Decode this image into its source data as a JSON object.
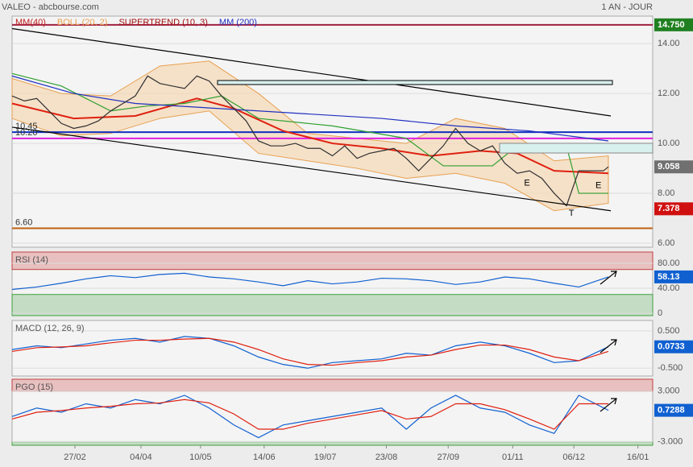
{
  "header": {
    "title": "VALEO - abcbourse.com",
    "period": "1 AN - JOUR"
  },
  "chart_data": [
    {
      "type": "line",
      "xlim": [
        0,
        260
      ],
      "xticks": [
        {
          "value": 25.5,
          "label": "27/02"
        },
        {
          "value": 52.3,
          "label": "04/04"
        },
        {
          "value": 76.5,
          "label": "10/05"
        },
        {
          "value": 102.3,
          "label": "14/06"
        },
        {
          "value": 127.1,
          "label": "19/07"
        },
        {
          "value": 151.9,
          "label": "23/08"
        },
        {
          "value": 177,
          "label": "27/09"
        },
        {
          "value": 203.2,
          "label": "01/11"
        },
        {
          "value": 228,
          "label": "06/12"
        },
        {
          "value": 254,
          "label": "16/01"
        }
      ],
      "ylim": [
        5.84,
        15.1
      ],
      "yticks": [
        {
          "value": 14,
          "label": "14.00"
        },
        {
          "value": 12,
          "label": "12.00"
        },
        {
          "value": 10,
          "label": "10.00"
        },
        {
          "value": 8,
          "label": "8.00"
        },
        {
          "value": 6,
          "label": "6.00"
        }
      ],
      "band": {
        "name": "BOLL (20, 2)",
        "color": "#e8a050",
        "x": [
          0,
          20,
          40,
          60,
          80,
          100,
          120,
          140,
          160,
          180,
          200,
          220,
          242
        ],
        "upper": [
          12.6,
          12.0,
          11.9,
          13.1,
          13.3,
          12.0,
          10.4,
          10.2,
          10.0,
          11.0,
          10.6,
          9.3,
          9.5
        ],
        "lower": [
          11.0,
          10.3,
          10.4,
          11.0,
          11.3,
          9.6,
          9.3,
          9.0,
          8.6,
          8.8,
          8.4,
          7.3,
          7.6
        ]
      },
      "series": [
        {
          "name": "MM(40)",
          "color": "#e02010",
          "x": [
            0,
            25,
            50,
            75,
            90,
            110,
            130,
            150,
            170,
            190,
            205,
            220,
            242
          ],
          "values": [
            11.6,
            11.0,
            11.1,
            11.8,
            11.4,
            10.5,
            10.0,
            9.8,
            9.5,
            9.7,
            9.6,
            8.9,
            8.8
          ]
        },
        {
          "name": "SUPERTREND (10, 3)",
          "color": "#30a030",
          "x": [
            0,
            20,
            40,
            55,
            70,
            85,
            100,
            130,
            160,
            175,
            195,
            205,
            225,
            230,
            242
          ],
          "values": [
            12.8,
            12.3,
            11.3,
            11.5,
            11.6,
            11.9,
            11.0,
            10.7,
            10.2,
            9.1,
            9.1,
            9.9,
            9.9,
            8.0,
            8.0
          ]
        },
        {
          "name": "MM (200)",
          "color": "#2030c0",
          "x": [
            0,
            25,
            50,
            100,
            150,
            180,
            210,
            242
          ],
          "values": [
            12.7,
            12.0,
            11.6,
            11.3,
            11.0,
            10.7,
            10.5,
            10.1
          ]
        },
        {
          "color": "#303030",
          "x": [
            0,
            5,
            10,
            15,
            20,
            25,
            30,
            35,
            40,
            45,
            50,
            55,
            60,
            65,
            70,
            75,
            80,
            85,
            90,
            95,
            100,
            105,
            110,
            115,
            120,
            125,
            130,
            135,
            140,
            145,
            150,
            155,
            160,
            165,
            170,
            175,
            180,
            185,
            190,
            195,
            200,
            205,
            210,
            215,
            220,
            225,
            230,
            235,
            240,
            242
          ],
          "values": [
            11.9,
            11.7,
            11.8,
            11.3,
            10.8,
            10.6,
            10.7,
            10.9,
            11.3,
            11.6,
            11.9,
            12.7,
            12.4,
            12.3,
            12.2,
            12.7,
            12.5,
            11.9,
            11.4,
            10.9,
            10.1,
            9.9,
            9.9,
            10.0,
            9.8,
            9.8,
            9.5,
            9.9,
            9.4,
            9.6,
            9.7,
            9.8,
            9.4,
            8.9,
            9.4,
            9.9,
            10.6,
            10.0,
            9.7,
            9.9,
            9.2,
            8.8,
            8.9,
            8.6,
            8.0,
            7.5,
            8.9,
            8.9,
            8.9,
            9.06
          ]
        },
        {
          "color": "#000000",
          "x": [
            0,
            243
          ],
          "values": [
            14.6,
            11.1
          ]
        },
        {
          "color": "#000000",
          "x": [
            0,
            243
          ],
          "values": [
            10.65,
            7.3
          ]
        }
      ],
      "hlines": [
        {
          "value": 14.75,
          "label": "14.750",
          "color": "#a02040",
          "side": "right"
        },
        {
          "value": 10.45,
          "label": "10.45",
          "color": "#1030c0",
          "side": "left"
        },
        {
          "value": 10.2,
          "label": "10.20",
          "color": "#e020e0",
          "side": "left"
        },
        {
          "value": 6.6,
          "label": "6.60",
          "color": "#c06010",
          "side": "left"
        }
      ],
      "last": [
        {
          "value": 9.058,
          "label": "9.058",
          "color": "#707070"
        },
        {
          "value": 7.378,
          "label": "7.378",
          "color": "#d01010"
        }
      ],
      "annotations": [
        {
          "x": 209,
          "y": 8.4,
          "text": "E"
        },
        {
          "x": 227,
          "y": 7.2,
          "text": "T"
        },
        {
          "x": 238,
          "y": 8.3,
          "text": "E"
        }
      ]
    },
    {
      "type": "line",
      "title": "RSI (14)",
      "ylim": [
        -3.9,
        98
      ],
      "yticks": [
        {
          "value": 80,
          "label": "80.00"
        },
        {
          "value": 40,
          "label": "40.00"
        },
        0
      ],
      "zones": [
        70,
        30
      ],
      "series": [
        {
          "color": "#1060d0",
          "x": [
            0,
            10,
            20,
            30,
            40,
            50,
            60,
            70,
            80,
            90,
            100,
            110,
            120,
            130,
            140,
            150,
            160,
            170,
            180,
            190,
            200,
            210,
            220,
            230,
            242
          ],
          "values": [
            38,
            42,
            48,
            55,
            60,
            57,
            62,
            64,
            58,
            55,
            50,
            44,
            52,
            47,
            50,
            56,
            55,
            52,
            46,
            50,
            58,
            55,
            48,
            42,
            58.13
          ]
        }
      ],
      "last": [
        {
          "value": 58.13,
          "label": "58.13",
          "color": "#1060d0"
        }
      ]
    },
    {
      "type": "line",
      "title": "MACD (12, 26, 9)",
      "ylim": [
        -0.71,
        0.78
      ],
      "yticks": [
        {
          "value": 0.5,
          "label": "0.500"
        },
        {
          "value": -0.5,
          "label": "-0.500"
        }
      ],
      "series": [
        {
          "color": "#1060d0",
          "x": [
            0,
            10,
            20,
            30,
            40,
            50,
            60,
            70,
            80,
            90,
            100,
            110,
            120,
            130,
            140,
            150,
            160,
            170,
            180,
            190,
            200,
            210,
            220,
            230,
            242
          ],
          "values": [
            0.0,
            0.1,
            0.05,
            0.15,
            0.25,
            0.3,
            0.2,
            0.35,
            0.3,
            0.1,
            -0.2,
            -0.4,
            -0.5,
            -0.35,
            -0.3,
            -0.25,
            -0.1,
            -0.15,
            0.1,
            0.2,
            0.1,
            -0.1,
            -0.35,
            -0.3,
            0.0733
          ]
        },
        {
          "color": "#e02010",
          "x": [
            0,
            10,
            20,
            30,
            40,
            50,
            60,
            70,
            80,
            90,
            100,
            110,
            120,
            130,
            140,
            150,
            160,
            170,
            180,
            190,
            200,
            210,
            220,
            230,
            242
          ],
          "values": [
            -0.05,
            0.05,
            0.07,
            0.1,
            0.18,
            0.25,
            0.25,
            0.28,
            0.3,
            0.2,
            0.0,
            -0.25,
            -0.4,
            -0.42,
            -0.35,
            -0.3,
            -0.2,
            -0.15,
            0.0,
            0.12,
            0.12,
            0.0,
            -0.2,
            -0.3,
            -0.05
          ]
        }
      ],
      "last": [
        {
          "value": 0.0733,
          "label": "0.0733",
          "color": "#1060d0"
        }
      ]
    },
    {
      "type": "line",
      "title": "PGO (15)",
      "ylim": [
        -3.4,
        4.4
      ],
      "yticks": [
        {
          "value": 3,
          "label": "3.000"
        },
        {
          "value": -3,
          "label": "-3.000"
        }
      ],
      "zones": [
        3,
        -3
      ],
      "series": [
        {
          "color": "#1060d0",
          "x": [
            0,
            10,
            20,
            30,
            40,
            50,
            60,
            70,
            80,
            90,
            100,
            110,
            120,
            130,
            140,
            150,
            160,
            170,
            180,
            190,
            200,
            210,
            220,
            230,
            242
          ],
          "values": [
            0,
            1,
            0.5,
            1.5,
            1,
            2,
            1.5,
            2.5,
            1,
            -1,
            -2.5,
            -1,
            -0.5,
            0,
            0.5,
            1,
            -1.5,
            1,
            2.5,
            1,
            0.5,
            -1,
            -2,
            2.5,
            0.7288
          ]
        },
        {
          "color": "#e02010",
          "x": [
            0,
            10,
            20,
            30,
            40,
            50,
            60,
            70,
            80,
            90,
            100,
            110,
            120,
            130,
            140,
            150,
            160,
            170,
            180,
            190,
            200,
            210,
            220,
            230,
            242
          ],
          "values": [
            -0.3,
            0.5,
            0.7,
            1.0,
            1.2,
            1.5,
            1.6,
            2.0,
            1.6,
            0.3,
            -1.5,
            -1.5,
            -0.8,
            -0.3,
            0.2,
            0.7,
            -0.3,
            0.0,
            1.5,
            1.5,
            0.8,
            -0.3,
            -1.5,
            1.5,
            1.5
          ]
        }
      ],
      "last": [
        {
          "value": 0.7288,
          "label": "0.7288",
          "color": "#1060d0"
        }
      ]
    }
  ]
}
